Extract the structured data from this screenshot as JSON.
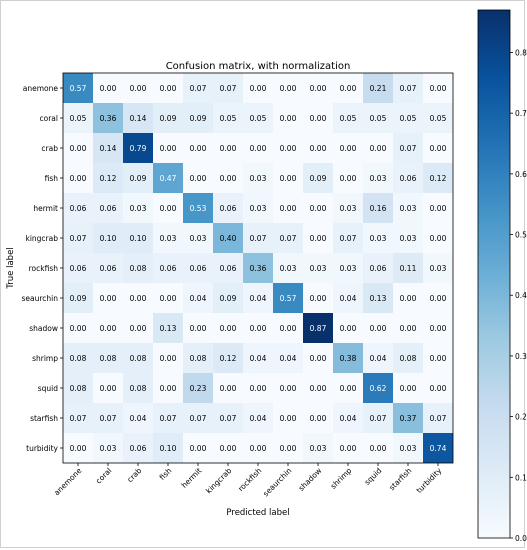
{
  "chart_data": {
    "type": "heatmap",
    "title": "Confusion matrix, with normalization",
    "xlabel": "Predicted label",
    "ylabel": "True label",
    "labels": [
      "anemone",
      "coral",
      "crab",
      "fish",
      "hermit",
      "kingcrab",
      "rockfish",
      "seaurchin",
      "shadow",
      "shrimp",
      "squid",
      "starfish",
      "turbidity"
    ],
    "matrix": [
      [
        "0.57",
        "0.00",
        "0.00",
        "0.00",
        "0.07",
        "0.07",
        "0.00",
        "0.00",
        "0.00",
        "0.00",
        "0.21",
        "0.07",
        "0.00"
      ],
      [
        "0.05",
        "0.36",
        "0.14",
        "0.09",
        "0.09",
        "0.05",
        "0.05",
        "0.00",
        "0.00",
        "0.05",
        "0.05",
        "0.05",
        "0.05"
      ],
      [
        "0.00",
        "0.14",
        "0.79",
        "0.00",
        "0.00",
        "0.00",
        "0.00",
        "0.00",
        "0.00",
        "0.00",
        "0.00",
        "0.07",
        "0.00"
      ],
      [
        "0.00",
        "0.12",
        "0.09",
        "0.47",
        "0.00",
        "0.00",
        "0.03",
        "0.00",
        "0.09",
        "0.00",
        "0.03",
        "0.06",
        "0.12"
      ],
      [
        "0.06",
        "0.06",
        "0.03",
        "0.00",
        "0.53",
        "0.06",
        "0.03",
        "0.00",
        "0.00",
        "0.03",
        "0.16",
        "0.03",
        "0.00"
      ],
      [
        "0.07",
        "0.10",
        "0.10",
        "0.03",
        "0.03",
        "0.40",
        "0.07",
        "0.07",
        "0.00",
        "0.07",
        "0.03",
        "0.03",
        "0.00"
      ],
      [
        "0.06",
        "0.06",
        "0.08",
        "0.06",
        "0.06",
        "0.06",
        "0.36",
        "0.03",
        "0.03",
        "0.03",
        "0.06",
        "0.11",
        "0.03"
      ],
      [
        "0.09",
        "0.00",
        "0.00",
        "0.00",
        "0.04",
        "0.09",
        "0.04",
        "0.57",
        "0.00",
        "0.04",
        "0.13",
        "0.00",
        "0.00"
      ],
      [
        "0.00",
        "0.00",
        "0.00",
        "0.13",
        "0.00",
        "0.00",
        "0.00",
        "0.00",
        "0.87",
        "0.00",
        "0.00",
        "0.00",
        "0.00"
      ],
      [
        "0.08",
        "0.08",
        "0.08",
        "0.00",
        "0.08",
        "0.12",
        "0.04",
        "0.04",
        "0.00",
        "0.38",
        "0.04",
        "0.08",
        "0.00"
      ],
      [
        "0.08",
        "0.00",
        "0.08",
        "0.00",
        "0.23",
        "0.00",
        "0.00",
        "0.00",
        "0.00",
        "0.00",
        "0.62",
        "0.00",
        "0.00"
      ],
      [
        "0.07",
        "0.07",
        "0.04",
        "0.07",
        "0.07",
        "0.07",
        "0.04",
        "0.00",
        "0.00",
        "0.04",
        "0.07",
        "0.37",
        "0.07"
      ],
      [
        "0.00",
        "0.03",
        "0.06",
        "0.10",
        "0.00",
        "0.00",
        "0.00",
        "0.00",
        "0.03",
        "0.00",
        "0.00",
        "0.03",
        "0.74"
      ]
    ],
    "colorbar": {
      "range": [
        0,
        0.87
      ],
      "ticks": [
        "0.0",
        "0.1",
        "0.2",
        "0.3",
        "0.4",
        "0.5",
        "0.6",
        "0.7",
        "0.8"
      ],
      "colormap": "Blues"
    }
  }
}
